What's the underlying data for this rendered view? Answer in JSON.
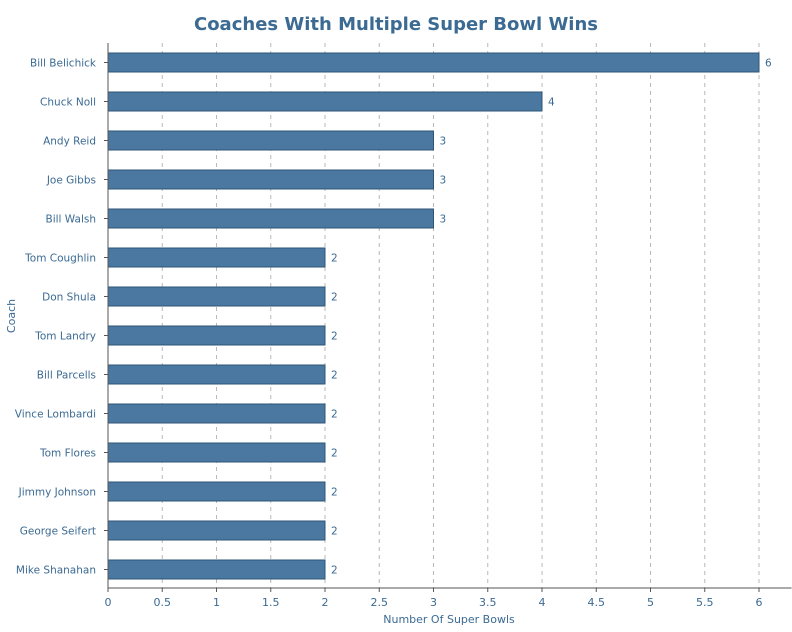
{
  "chart_data": {
    "type": "bar",
    "orientation": "horizontal",
    "title": "Coaches With Multiple Super Bowl Wins",
    "xlabel": "Number Of Super Bowls",
    "ylabel": "Coach",
    "xlim": [
      0,
      6.3
    ],
    "xticks": [
      0,
      0.5,
      1,
      1.5,
      2,
      2.5,
      3,
      3.5,
      4,
      4.5,
      5,
      5.5,
      6
    ],
    "xtick_labels": [
      "0",
      "0.5",
      "1",
      "1.5",
      "2",
      "2.5",
      "3",
      "3.5",
      "4",
      "4.5",
      "5",
      "5.5",
      "6"
    ],
    "grid": true,
    "bar_color": "#4a78a0",
    "text_color": "#3b6a93",
    "categories": [
      "Bill Belichick",
      "Chuck Noll",
      "Andy Reid",
      "Joe Gibbs",
      "Bill Walsh",
      "Tom Coughlin",
      "Don Shula",
      "Tom Landry",
      "Bill Parcells",
      "Vince Lombardi",
      "Tom Flores",
      "Jimmy Johnson",
      "George Seifert",
      "Mike Shanahan"
    ],
    "values": [
      6,
      4,
      3,
      3,
      3,
      2,
      2,
      2,
      2,
      2,
      2,
      2,
      2,
      2
    ],
    "data_labels": [
      "6",
      "4",
      "3",
      "3",
      "3",
      "2",
      "2",
      "2",
      "2",
      "2",
      "2",
      "2",
      "2",
      "2"
    ]
  }
}
